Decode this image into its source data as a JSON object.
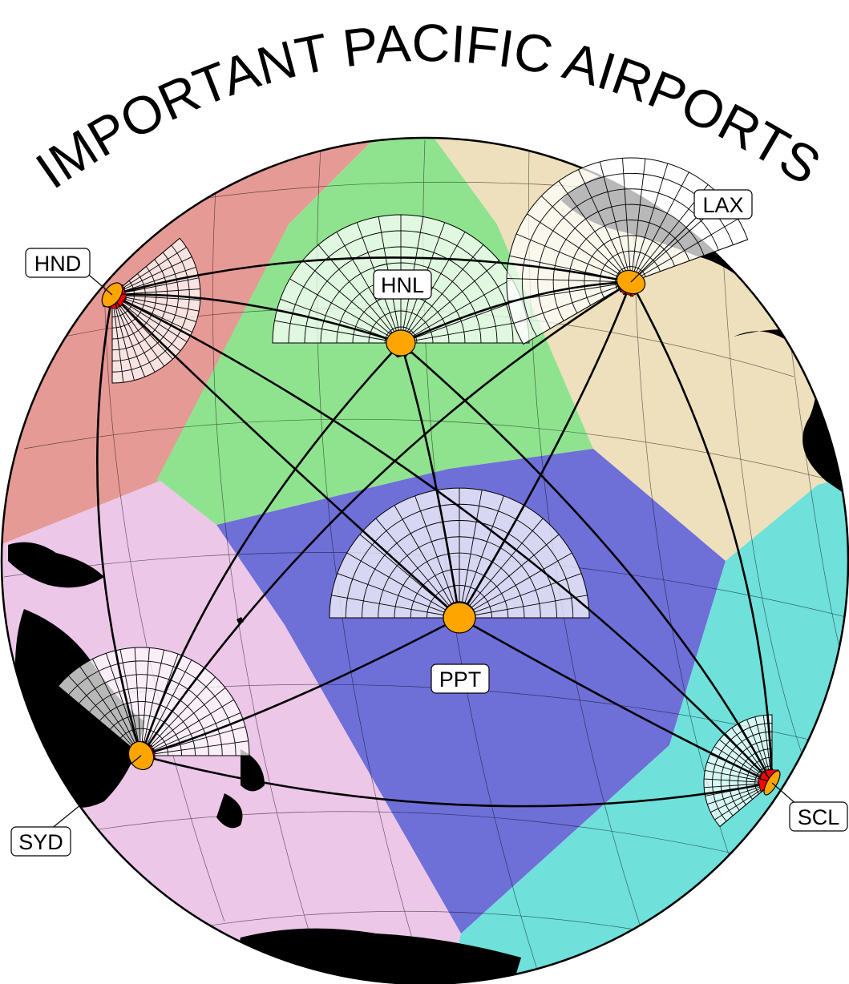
{
  "title": "IMPORTANT PACIFIC AIRPORTS",
  "airports": [
    {
      "code": "HND"
    },
    {
      "code": "HNL"
    },
    {
      "code": "LAX"
    },
    {
      "code": "PPT"
    },
    {
      "code": "SYD"
    },
    {
      "code": "SCL"
    }
  ],
  "regions": [
    {
      "airport": "HND",
      "color": "#e69a95"
    },
    {
      "airport": "HNL",
      "color": "#8fe38f"
    },
    {
      "airport": "LAX",
      "color": "#eee0bd"
    },
    {
      "airport": "PPT",
      "color": "#6f6fd8"
    },
    {
      "airport": "SYD",
      "color": "#ecc7e8"
    },
    {
      "airport": "SCL",
      "color": "#6fe0da"
    }
  ],
  "styles": {
    "airport_fill": "#ffa500",
    "arrowhead_color": "#ff0000",
    "land_color": "#000000"
  }
}
